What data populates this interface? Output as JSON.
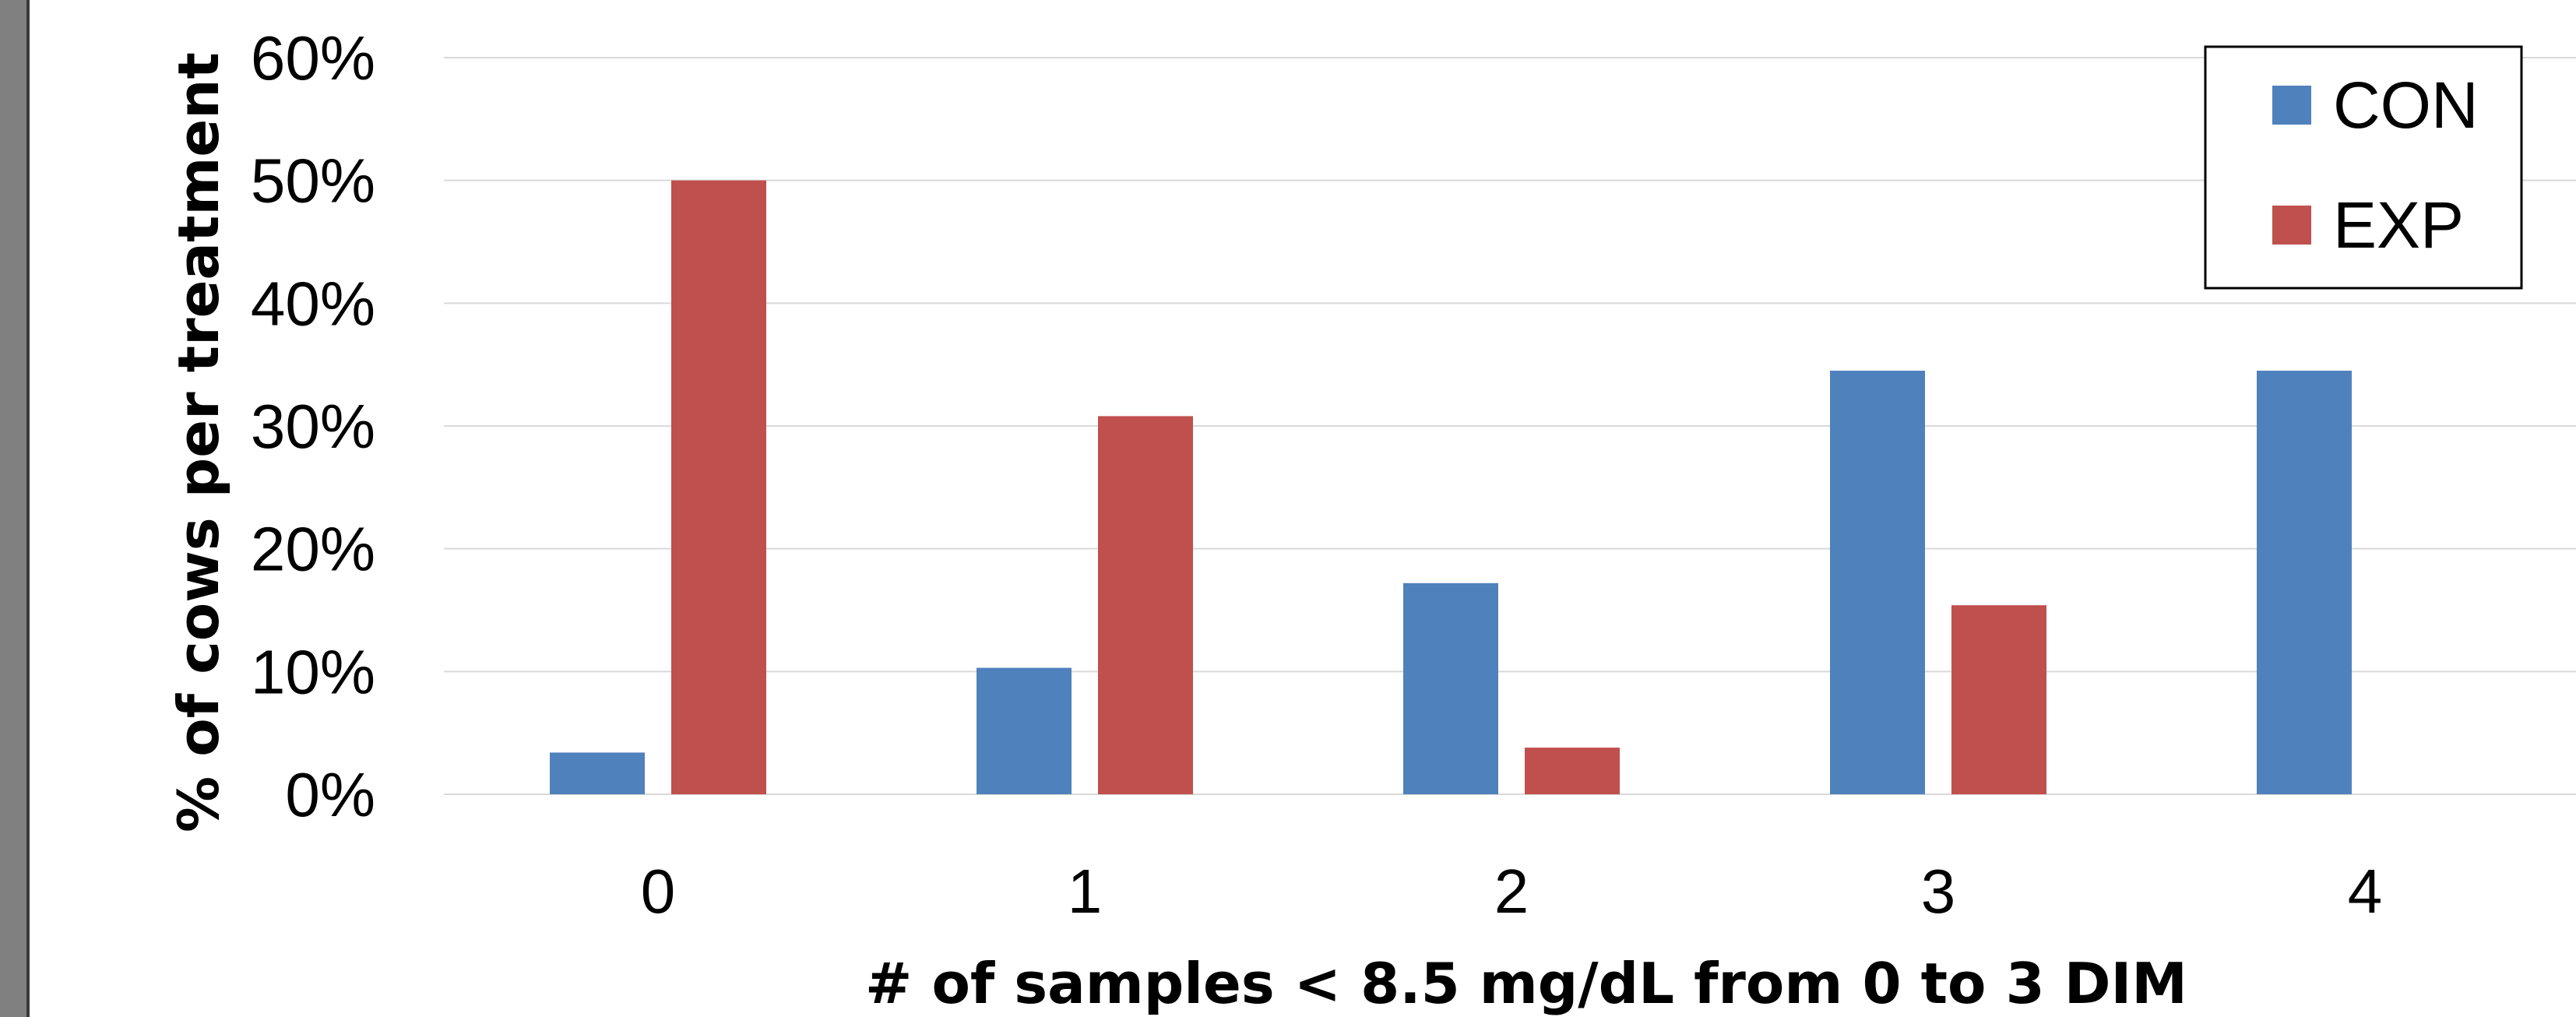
{
  "chart_data": {
    "type": "bar",
    "title": "",
    "xlabel": "# of samples < 8.5 mg/dL from 0 to 3 DIM",
    "ylabel": "% of cows per treatment",
    "categories": [
      "0",
      "1",
      "2",
      "3",
      "4"
    ],
    "series": [
      {
        "name": "CON",
        "color": "#4F81BD",
        "values": [
          3.4,
          10.3,
          17.2,
          34.5,
          34.5
        ]
      },
      {
        "name": "EXP",
        "color": "#C0504D",
        "values": [
          50.0,
          30.8,
          3.8,
          15.4,
          0
        ]
      }
    ],
    "ylim": [
      0,
      60
    ],
    "yticks": [
      0,
      10,
      20,
      30,
      40,
      50,
      60
    ],
    "ytick_labels": [
      "0%",
      "10%",
      "20%",
      "30%",
      "40%",
      "50%",
      "60%"
    ],
    "grid": true,
    "legend_position": "top-right"
  }
}
